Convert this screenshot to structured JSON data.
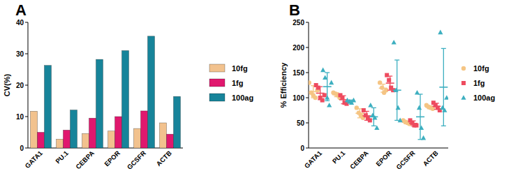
{
  "chart_data": [
    {
      "type": "bar",
      "title": "A",
      "y_label": "CV(%)",
      "categories": [
        "GATA1",
        "PU.1",
        "CEBPA",
        "EPOR",
        "GCSFR",
        "ACTB"
      ],
      "ylim": [
        0,
        40
      ],
      "yticks": [
        0,
        10,
        20,
        30,
        40
      ],
      "legend": "right",
      "series": [
        {
          "name": "10fg",
          "color": "#f2c28e",
          "values": [
            11.7,
            2.8,
            4.6,
            5.4,
            6.2,
            8.0
          ]
        },
        {
          "name": "1fg",
          "color": "#e0186e",
          "values": [
            5.0,
            5.7,
            9.5,
            10.0,
            11.8,
            4.4
          ]
        },
        {
          "name": "100ag",
          "color": "#17849a",
          "values": [
            26.3,
            12.1,
            28.2,
            31.0,
            35.6,
            16.4
          ]
        }
      ]
    },
    {
      "type": "scatter",
      "title": "B",
      "y_label": "% Efficiency",
      "categories": [
        "GATA1",
        "PU.1",
        "CEBPA",
        "EPOR",
        "GCSFR",
        "ACTB"
      ],
      "ylim": [
        0,
        250
      ],
      "yticks": [
        0,
        50,
        100,
        150,
        200,
        250
      ],
      "legend": "right",
      "series": [
        {
          "name": "10fg",
          "color": "#f5c584",
          "marker": "circle",
          "values": [
            [
              130,
              110,
              105,
              100,
              115
            ],
            [
              110,
              108,
              105,
              100
            ],
            [
              80,
              70,
              65,
              60
            ],
            [
              130,
              120,
              110,
              115
            ],
            [
              55,
              52,
              50,
              48
            ],
            [
              85,
              82,
              80,
              78
            ]
          ],
          "means": [
            112,
            106,
            69,
            119,
            51,
            81
          ],
          "errors": [
            12,
            4,
            9,
            8,
            3,
            3
          ]
        },
        {
          "name": "1fg",
          "color": "#ee4b5f",
          "marker": "square",
          "values": [
            [
              125,
              120,
              100,
              95,
              105
            ],
            [
              105,
              100,
              90,
              88
            ],
            [
              75,
              65,
              60,
              55
            ],
            [
              145,
              135,
              120,
              115
            ],
            [
              55,
              50,
              45,
              45
            ],
            [
              90,
              85,
              80,
              75
            ]
          ],
          "means": [
            109,
            96,
            64,
            129,
            49,
            83
          ],
          "errors": [
            13,
            8,
            9,
            14,
            5,
            6
          ]
        },
        {
          "name": "100ag",
          "color": "#3dafc0",
          "marker": "triangle",
          "values": [
            [
              155,
              140,
              100,
              85,
              130
            ],
            [
              95,
              92,
              90,
              95
            ],
            [
              85,
              65,
              60,
              40
            ],
            [
              210,
              115,
              80,
              55
            ],
            [
              110,
              80,
              40,
              20
            ],
            [
              230,
              80,
              75,
              100
            ]
          ],
          "means": [
            122,
            93,
            62,
            115,
            62,
            121
          ],
          "errors": [
            28,
            2.5,
            18,
            60,
            45,
            77
          ]
        }
      ]
    }
  ]
}
